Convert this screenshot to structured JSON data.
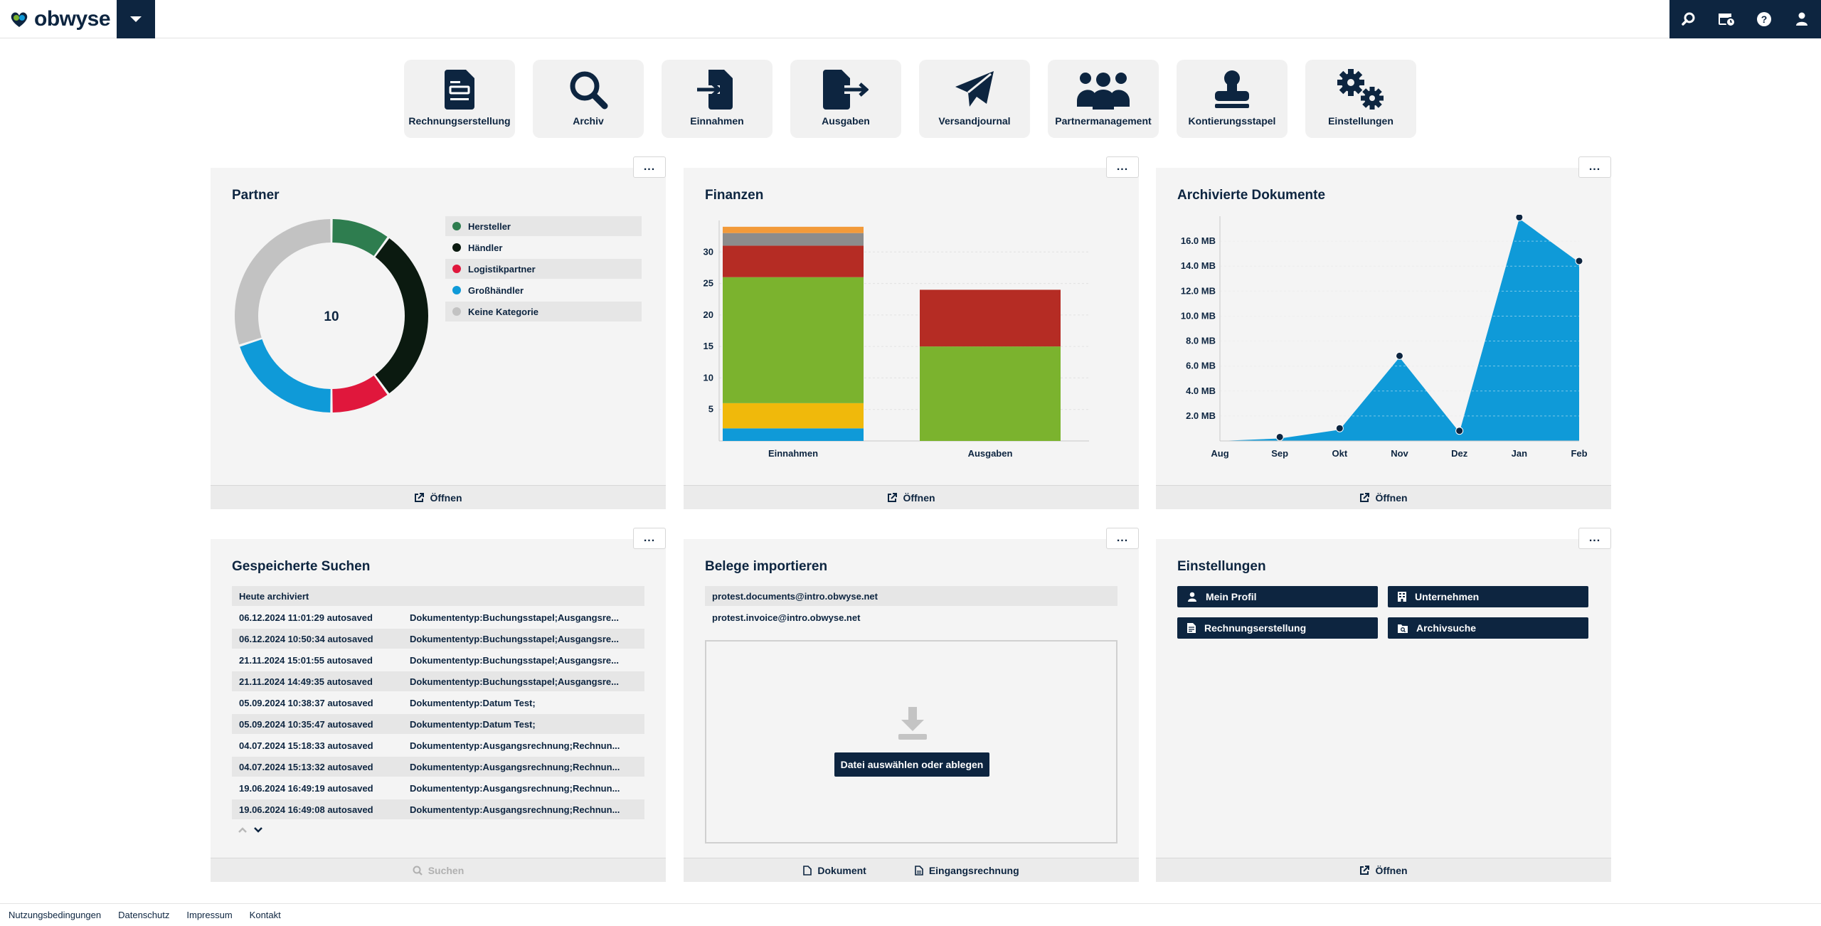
{
  "brand": {
    "logo_text": "obwyse"
  },
  "topbar": {
    "menu_toggle_icon": "caret-down-icon",
    "right_icons": [
      "search-icon",
      "calendar-clock-icon",
      "help-icon",
      "user-icon"
    ]
  },
  "launcher": [
    {
      "label": "Rechnungserstellung",
      "icon": "invoice-icon"
    },
    {
      "label": "Archiv",
      "icon": "search-icon"
    },
    {
      "label": "Einnahmen",
      "icon": "file-import-icon"
    },
    {
      "label": "Ausgaben",
      "icon": "file-export-icon"
    },
    {
      "label": "Versandjournal",
      "icon": "paper-plane-icon"
    },
    {
      "label": "Partnermanagement",
      "icon": "users-icon"
    },
    {
      "label": "Kontierungsstapel",
      "icon": "stamp-icon"
    },
    {
      "label": "Einstellungen",
      "icon": "gears-icon"
    }
  ],
  "widgets": {
    "more_label": "...",
    "partner": {
      "title": "Partner",
      "center_value": "10",
      "footer_label": "Öffnen",
      "legend": [
        {
          "label": "Hersteller",
          "color": "#2e7d4f"
        },
        {
          "label": "Händler",
          "color": "#0b1a10"
        },
        {
          "label": "Logistikpartner",
          "color": "#e0173c"
        },
        {
          "label": "Großhändler",
          "color": "#0f9ad8"
        },
        {
          "label": "Keine Kategorie",
          "color": "#c2c2c2"
        }
      ]
    },
    "finanzen": {
      "title": "Finanzen",
      "footer_label": "Öffnen"
    },
    "archiv": {
      "title": "Archivierte Dokumente",
      "footer_label": "Öffnen"
    },
    "suchen": {
      "title": "Gespeicherte Suchen",
      "header": "Heute archiviert",
      "rows": [
        {
          "date": "06.12.2024 11:01:29 autosaved",
          "query": "Dokumententyp:Buchungsstapel;Ausgangsre..."
        },
        {
          "date": "06.12.2024 10:50:34 autosaved",
          "query": "Dokumententyp:Buchungsstapel;Ausgangsre..."
        },
        {
          "date": "21.11.2024 15:01:55 autosaved",
          "query": "Dokumententyp:Buchungsstapel;Ausgangsre..."
        },
        {
          "date": "21.11.2024 14:49:35 autosaved",
          "query": "Dokumententyp:Buchungsstapel;Ausgangsre..."
        },
        {
          "date": "05.09.2024 10:38:37 autosaved",
          "query": "Dokumententyp:Datum Test;"
        },
        {
          "date": "05.09.2024 10:35:47 autosaved",
          "query": "Dokumententyp:Datum Test;"
        },
        {
          "date": "04.07.2024 15:18:33 autosaved",
          "query": "Dokumententyp:Ausgangsrechnung;Rechnun..."
        },
        {
          "date": "04.07.2024 15:13:32 autosaved",
          "query": "Dokumententyp:Ausgangsrechnung;Rechnun..."
        },
        {
          "date": "19.06.2024 16:49:19 autosaved",
          "query": "Dokumententyp:Ausgangsrechnung;Rechnun..."
        },
        {
          "date": "19.06.2024 16:49:08 autosaved",
          "query": "Dokumententyp:Ausgangsrechnung;Rechnun..."
        }
      ],
      "footer_label": "Suchen"
    },
    "belege": {
      "title": "Belege importieren",
      "emails": [
        "protest.documents@intro.obwyse.net",
        "protest.invoice@intro.obwyse.net"
      ],
      "drop_button": "Datei auswählen oder ablegen",
      "footer_doc": "Dokument",
      "footer_invoice": "Eingangsrechnung"
    },
    "einstellungen": {
      "title": "Einstellungen",
      "buttons": [
        {
          "label": "Mein Profil",
          "icon": "user-icon"
        },
        {
          "label": "Unternehmen",
          "icon": "building-icon"
        },
        {
          "label": "Rechnungserstellung",
          "icon": "invoice-icon"
        },
        {
          "label": "Archivsuche",
          "icon": "folder-search-icon"
        }
      ],
      "footer_label": "Öffnen"
    }
  },
  "footer": {
    "links": [
      "Nutzungsbedingungen",
      "Datenschutz",
      "Impressum",
      "Kontakt"
    ]
  },
  "chart_data": [
    {
      "type": "pie",
      "title": "Partner",
      "center_label": "10",
      "categories": [
        "Hersteller",
        "Händler",
        "Logistikpartner",
        "Großhändler",
        "Keine Kategorie"
      ],
      "values": [
        1,
        3,
        1,
        2,
        3
      ],
      "colors": [
        "#2e7d4f",
        "#0b1a10",
        "#e0173c",
        "#0f9ad8",
        "#c2c2c2"
      ],
      "legend": "right"
    },
    {
      "type": "bar",
      "title": "Finanzen",
      "stacked": true,
      "categories": [
        "Einnahmen",
        "Ausgaben"
      ],
      "series": [
        {
          "values": [
            2,
            0
          ],
          "color": "#0f9ad8"
        },
        {
          "values": [
            4,
            0
          ],
          "color": "#f0b90b"
        },
        {
          "values": [
            20,
            15
          ],
          "color": "#7bb32e"
        },
        {
          "values": [
            5,
            9
          ],
          "color": "#b52c24"
        },
        {
          "values": [
            2,
            0
          ],
          "color": "#8c8c8c"
        },
        {
          "values": [
            1,
            0
          ],
          "color": "#f29a3a"
        }
      ],
      "yticks": [
        5,
        10,
        15,
        20,
        25,
        30
      ],
      "ylim": [
        0,
        35
      ],
      "grid": true
    },
    {
      "type": "area",
      "title": "Archivierte Dokumente",
      "x": [
        "Aug",
        "Sep",
        "Okt",
        "Nov",
        "Dez",
        "Jan",
        "Feb"
      ],
      "values": [
        0,
        0.2,
        0.9,
        6.7,
        0.7,
        17.8,
        14.3
      ],
      "unit": "MB",
      "yticks": [
        "2.0 MB",
        "4.0 MB",
        "6.0 MB",
        "8.0 MB",
        "10.0 MB",
        "12.0 MB",
        "14.0 MB",
        "16.0 MB"
      ],
      "ylim": [
        0,
        18
      ],
      "color": "#0f9ad8",
      "grid": true
    }
  ]
}
